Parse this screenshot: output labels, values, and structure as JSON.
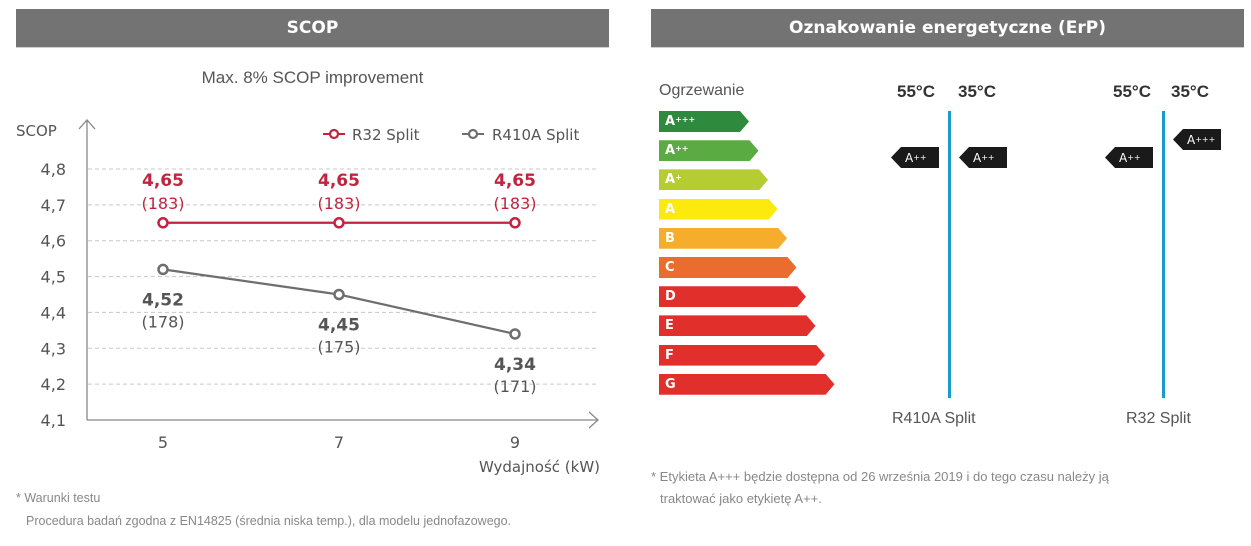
{
  "left_panel": {
    "header": "SCOP",
    "subtitle": "Max. 8% SCOP improvement",
    "footnote_title": "* Warunki testu",
    "footnote_body": "Procedura badań zgodna z EN14825 (średnia niska temp.), dla modelu jednofazowego."
  },
  "chart_data": {
    "type": "line",
    "title": "Max. 8% SCOP improvement",
    "xlabel": "Wydajność (kW)",
    "ylabel": "SCOP",
    "x": [
      5,
      7,
      9
    ],
    "x_tick_labels": [
      "5",
      "7",
      "9"
    ],
    "y_tick_labels": [
      "4,8",
      "4,7",
      "4,6",
      "4,5",
      "4,4",
      "4,3",
      "4,2",
      "4,1"
    ],
    "y_ticks": [
      4.8,
      4.7,
      4.6,
      4.5,
      4.4,
      4.3,
      4.2,
      4.1
    ],
    "ylim": [
      4.1,
      4.8
    ],
    "grid": true,
    "legend_position": "top-right",
    "series": [
      {
        "name": "R32 Split",
        "color": "#c0243f",
        "values": [
          4.65,
          4.65,
          4.65
        ],
        "value_labels": [
          "4,65",
          "4,65",
          "4,65"
        ],
        "sub_labels": [
          "(183)",
          "(183)",
          "(183)"
        ]
      },
      {
        "name": "R410A Split",
        "color": "#6e6e6e",
        "values": [
          4.52,
          4.45,
          4.34
        ],
        "value_labels": [
          "4,52",
          "4,45",
          "4,34"
        ],
        "sub_labels": [
          "(178)",
          "(175)",
          "(171)"
        ]
      }
    ]
  },
  "right_panel": {
    "header": "Oznakowanie energetyczne (ErP)",
    "heating_label": "Ogrzewanie",
    "classes": [
      {
        "base": "A",
        "sup": "+++",
        "color": "#2e8a3c"
      },
      {
        "base": "A",
        "sup": "++",
        "color": "#5aab41"
      },
      {
        "base": "A",
        "sup": "+",
        "color": "#b5cd32"
      },
      {
        "base": "A",
        "sup": "",
        "color": "#fcea0e"
      },
      {
        "base": "B",
        "sup": "",
        "color": "#f6ad2b"
      },
      {
        "base": "C",
        "sup": "",
        "color": "#eb6c2f"
      },
      {
        "base": "D",
        "sup": "",
        "color": "#e1302b"
      },
      {
        "base": "E",
        "sup": "",
        "color": "#e1302b"
      },
      {
        "base": "F",
        "sup": "",
        "color": "#e1302b"
      },
      {
        "base": "G",
        "sup": "",
        "color": "#e1302b"
      }
    ],
    "units": [
      {
        "name": "R410A Split",
        "temp_55": "55°C",
        "temp_35": "35°C",
        "rating_55": {
          "base": "A",
          "sup": "++"
        },
        "rating_35": {
          "base": "A",
          "sup": "++"
        }
      },
      {
        "name": "R32 Split",
        "temp_55": "55°C",
        "temp_35": "35°C",
        "rating_55": {
          "base": "A",
          "sup": "++"
        },
        "rating_35": {
          "base": "A",
          "sup": "+++"
        }
      }
    ],
    "footnote_line1": "* Etykieta A+++ będzie dostępna od 26 września 2019 i do tego czasu należy ją",
    "footnote_line2": "traktować jako etykietę A++."
  }
}
